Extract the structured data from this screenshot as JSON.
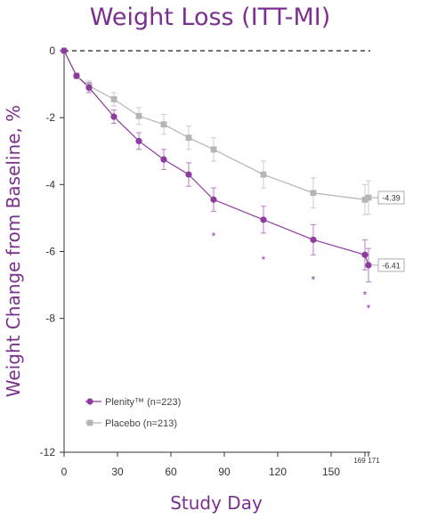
{
  "chart_data": {
    "type": "line",
    "title": "Weight Loss (ITT-MI)",
    "xlabel": "Study Day",
    "ylabel": "Weight Change from Baseline, %",
    "xlim": [
      0,
      172
    ],
    "ylim": [
      -12,
      0
    ],
    "x_ticks": [
      "0",
      "30",
      "60",
      "90",
      "120",
      "150"
    ],
    "x_ticks_small": [
      "169",
      "171"
    ],
    "y_ticks": [
      "0",
      "-2",
      "-4",
      "-6",
      "-8",
      "-12"
    ],
    "baseline_dashed": true,
    "legend_position": "bottom-left",
    "series": [
      {
        "name": "Plenity™ (n=223)",
        "color": "#8e3a9e",
        "marker": "circle",
        "x": [
          0,
          7,
          14,
          28,
          42,
          56,
          70,
          84,
          112,
          140,
          169,
          171
        ],
        "y": [
          0,
          -0.75,
          -1.1,
          -1.97,
          -2.7,
          -3.25,
          -3.7,
          -4.45,
          -5.05,
          -5.65,
          -6.1,
          -6.41
        ],
        "err": [
          0,
          0.08,
          0.15,
          0.2,
          0.25,
          0.3,
          0.35,
          0.35,
          0.4,
          0.45,
          0.45,
          0.5
        ]
      },
      {
        "name": "Placebo (n=213)",
        "color": "#b5b5b5",
        "marker": "square",
        "x": [
          0,
          7,
          14,
          28,
          42,
          56,
          70,
          84,
          112,
          140,
          169,
          171
        ],
        "y": [
          0,
          -0.75,
          -1.05,
          -1.45,
          -1.95,
          -2.2,
          -2.6,
          -2.95,
          -3.7,
          -4.25,
          -4.45,
          -4.39
        ],
        "err": [
          0,
          0.08,
          0.15,
          0.2,
          0.25,
          0.3,
          0.35,
          0.35,
          0.4,
          0.45,
          0.45,
          0.5
        ]
      }
    ],
    "end_labels": [
      "-4.39",
      "-6.41"
    ],
    "significance": [
      {
        "x": 84,
        "y": -5.5,
        "label": "*"
      },
      {
        "x": 112,
        "y": -6.2,
        "label": "*"
      },
      {
        "x": 140,
        "y": -6.8,
        "label": "*"
      },
      {
        "x": 169,
        "y": -7.25,
        "label": "*"
      },
      {
        "x": 171,
        "y": -7.65,
        "label": "*"
      }
    ]
  }
}
